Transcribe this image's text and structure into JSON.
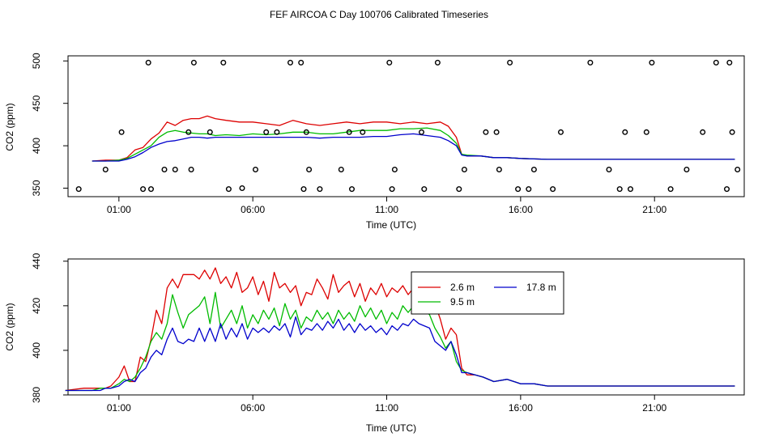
{
  "chart_title": "FEF AIRCOA C  Day 100706  Calibrated Timeseries",
  "chart_data": [
    {
      "type": "line",
      "name": "top-panel",
      "xlabel": "Time (UTC)",
      "ylabel": "CO2 (ppm)",
      "xlim": [
        -0.9,
        24.35
      ],
      "ylim": [
        340,
        506
      ],
      "x_ticks": [
        {
          "value": 1,
          "label": "01:00"
        },
        {
          "value": 6,
          "label": "06:00"
        },
        {
          "value": 11,
          "label": "11:00"
        },
        {
          "value": 16,
          "label": "16:00"
        },
        {
          "value": 21,
          "label": "21:00"
        }
      ],
      "y_ticks": [
        {
          "value": 350,
          "label": "350"
        },
        {
          "value": 400,
          "label": "400"
        },
        {
          "value": 450,
          "label": "450"
        },
        {
          "value": 500,
          "label": "500"
        }
      ],
      "series": [
        {
          "name": "2.6 m",
          "color": "#dd0000",
          "x": [
            0,
            0.5,
            1,
            1.3,
            1.6,
            1.9,
            2.2,
            2.5,
            2.8,
            3.1,
            3.4,
            3.7,
            4,
            4.3,
            4.6,
            5,
            5.5,
            6,
            6.5,
            7,
            7.5,
            8,
            8.5,
            9,
            9.5,
            10,
            10.5,
            11,
            11.5,
            12,
            12.5,
            13,
            13.3,
            13.6,
            13.8,
            14,
            14.5,
            15,
            15.5,
            16,
            17,
            18,
            19,
            20,
            21,
            22,
            23,
            24
          ],
          "y": [
            382,
            383,
            383,
            386,
            395,
            398,
            408,
            415,
            428,
            424,
            430,
            432,
            432,
            435,
            432,
            430,
            428,
            428,
            426,
            424,
            430,
            426,
            424,
            426,
            428,
            426,
            428,
            428,
            426,
            428,
            426,
            428,
            423,
            410,
            390,
            388,
            388,
            386,
            386,
            385,
            384,
            384,
            384,
            384,
            384,
            384,
            384,
            384
          ]
        },
        {
          "name": "9.5 m",
          "color": "#00bb00",
          "x": [
            0,
            0.5,
            1,
            1.3,
            1.6,
            1.9,
            2.2,
            2.5,
            2.8,
            3.1,
            3.4,
            3.7,
            4,
            4.3,
            4.6,
            5,
            5.5,
            6,
            6.5,
            7,
            7.5,
            8,
            8.5,
            9,
            9.5,
            10,
            10.5,
            11,
            11.5,
            12,
            12.5,
            13,
            13.3,
            13.6,
            13.8,
            14,
            14.5,
            15,
            15.5,
            16,
            17,
            18,
            19,
            20,
            21,
            22,
            23,
            24
          ],
          "y": [
            382,
            382,
            383,
            385,
            390,
            395,
            400,
            410,
            416,
            418,
            416,
            415,
            414,
            414,
            412,
            413,
            412,
            414,
            413,
            414,
            416,
            416,
            414,
            414,
            416,
            418,
            418,
            418,
            420,
            420,
            421,
            418,
            412,
            403,
            390,
            389,
            388,
            386,
            386,
            385,
            384,
            384,
            384,
            384,
            384,
            384,
            384,
            384
          ]
        },
        {
          "name": "17.8 m",
          "color": "#0000cc",
          "x": [
            0,
            0.5,
            1,
            1.3,
            1.6,
            1.9,
            2.2,
            2.5,
            2.8,
            3.1,
            3.4,
            3.7,
            4,
            4.3,
            4.6,
            5,
            5.5,
            6,
            6.5,
            7,
            7.5,
            8,
            8.5,
            9,
            9.5,
            10,
            10.5,
            11,
            11.5,
            12,
            12.5,
            13,
            13.3,
            13.6,
            13.8,
            14,
            14.5,
            15,
            15.5,
            16,
            17,
            18,
            19,
            20,
            21,
            22,
            23,
            24
          ],
          "y": [
            382,
            382,
            382,
            384,
            387,
            392,
            398,
            402,
            405,
            406,
            408,
            410,
            410,
            409,
            410,
            410,
            410,
            410,
            410,
            410,
            410,
            410,
            409,
            410,
            410,
            410,
            411,
            411,
            413,
            414,
            412,
            410,
            406,
            400,
            389,
            388,
            388,
            386,
            386,
            385,
            384,
            384,
            384,
            384,
            384,
            384,
            384,
            384
          ]
        }
      ],
      "scatter": {
        "name": "flags",
        "marker": "open-circle",
        "x": [
          -0.5,
          1.1,
          1.9,
          2.1,
          3.1,
          3.6,
          4.4,
          5.6,
          6.1,
          6.9,
          7.4,
          8,
          8.5,
          9.3,
          10.1,
          11.3,
          12.4,
          12.9,
          13.7,
          14.7,
          15.6,
          15.9,
          16.3,
          17.5,
          18.6,
          19.7,
          20.9,
          22.2,
          23.3,
          23.7,
          0.5,
          2.2,
          2.7,
          3.7,
          4.9,
          5.1,
          7.8,
          8.1,
          9.7,
          11.1,
          12.3,
          13.9,
          15.1,
          16.5,
          17.2,
          19.3,
          20.7,
          21.6,
          22.8,
          23.8,
          3.8,
          6.5,
          7.9,
          9.6,
          11.2,
          15.2,
          20.1,
          24.1,
          19.9,
          23.9
        ],
        "y": [
          349,
          416,
          349,
          498,
          372,
          416,
          416,
          350,
          372,
          416,
          498,
          416,
          349,
          372,
          416,
          372,
          349,
          498,
          349,
          416,
          498,
          349,
          349,
          416,
          498,
          349,
          498,
          372,
          498,
          349,
          372,
          349,
          372,
          372,
          498,
          349,
          498,
          372,
          349,
          498,
          416,
          372,
          416,
          372,
          349,
          372,
          416,
          349,
          416,
          498,
          498,
          416,
          349,
          416,
          349,
          372,
          349,
          372,
          416,
          416
        ]
      }
    },
    {
      "type": "line",
      "name": "bottom-panel",
      "xlabel": "Time (UTC)",
      "ylabel": "CO2 (ppm)",
      "xlim": [
        -0.9,
        24.35
      ],
      "ylim": [
        380,
        441
      ],
      "x_ticks": [
        {
          "value": 1,
          "label": "01:00"
        },
        {
          "value": 6,
          "label": "06:00"
        },
        {
          "value": 11,
          "label": "11:00"
        },
        {
          "value": 16,
          "label": "16:00"
        },
        {
          "value": 21,
          "label": "21:00"
        }
      ],
      "y_ticks": [
        {
          "value": 380,
          "label": "380"
        },
        {
          "value": 400,
          "label": "400"
        },
        {
          "value": 420,
          "label": "420"
        },
        {
          "value": 440,
          "label": "440"
        }
      ],
      "legend": {
        "position": "top-right",
        "entries": [
          {
            "label": "2.6 m",
            "color": "#dd0000"
          },
          {
            "label": "9.5 m",
            "color": "#00bb00"
          },
          {
            "label": "17.8 m",
            "color": "#0000cc"
          }
        ]
      },
      "series": [
        {
          "name": "2.6 m",
          "color": "#dd0000",
          "x": [
            -1,
            -0.3,
            0,
            0.3,
            0.5,
            0.7,
            1,
            1.2,
            1.4,
            1.6,
            1.8,
            2,
            2.2,
            2.4,
            2.6,
            2.8,
            3,
            3.2,
            3.4,
            3.6,
            3.8,
            4,
            4.2,
            4.4,
            4.6,
            4.8,
            5,
            5.2,
            5.4,
            5.6,
            5.8,
            6,
            6.2,
            6.4,
            6.6,
            6.8,
            7,
            7.2,
            7.4,
            7.6,
            7.8,
            8,
            8.2,
            8.4,
            8.6,
            8.8,
            9,
            9.2,
            9.4,
            9.6,
            9.8,
            10,
            10.2,
            10.4,
            10.6,
            10.8,
            11,
            11.2,
            11.4,
            11.6,
            11.8,
            12,
            12.2,
            12.4,
            12.6,
            12.8,
            13,
            13.2,
            13.4,
            13.6,
            13.8,
            14,
            14.3,
            14.6,
            15,
            15.5,
            16,
            16.5,
            17,
            18,
            19,
            20,
            21,
            22,
            23,
            24
          ],
          "y": [
            382,
            383,
            383,
            383,
            383,
            384,
            388,
            393,
            386,
            386,
            397,
            395,
            405,
            418,
            412,
            428,
            432,
            428,
            434,
            434,
            434,
            432,
            436,
            432,
            437,
            430,
            433,
            428,
            435,
            426,
            428,
            433,
            425,
            431,
            422,
            435,
            428,
            430,
            426,
            429,
            420,
            426,
            425,
            432,
            428,
            423,
            434,
            426,
            429,
            431,
            424,
            430,
            422,
            428,
            425,
            430,
            424,
            428,
            426,
            429,
            425,
            428,
            426,
            427,
            426,
            421,
            414,
            405,
            410,
            407,
            392,
            389,
            389,
            388,
            386,
            387,
            385,
            385,
            384,
            384,
            384,
            384,
            384,
            384,
            384,
            384
          ]
        },
        {
          "name": "9.5 m",
          "color": "#00bb00",
          "x": [
            -1,
            -0.3,
            0,
            0.3,
            0.5,
            0.7,
            1,
            1.2,
            1.4,
            1.6,
            1.8,
            2,
            2.2,
            2.4,
            2.6,
            2.8,
            3,
            3.2,
            3.4,
            3.6,
            3.8,
            4,
            4.2,
            4.4,
            4.6,
            4.8,
            5,
            5.2,
            5.4,
            5.6,
            5.8,
            6,
            6.2,
            6.4,
            6.6,
            6.8,
            7,
            7.2,
            7.4,
            7.6,
            7.8,
            8,
            8.2,
            8.4,
            8.6,
            8.8,
            9,
            9.2,
            9.4,
            9.6,
            9.8,
            10,
            10.2,
            10.4,
            10.6,
            10.8,
            11,
            11.2,
            11.4,
            11.6,
            11.8,
            12,
            12.2,
            12.4,
            12.6,
            12.8,
            13,
            13.2,
            13.4,
            13.6,
            13.8,
            14,
            14.3,
            14.6,
            15,
            15.5,
            16,
            16.5,
            17,
            18,
            19,
            20,
            21,
            22,
            23,
            24
          ],
          "y": [
            382,
            382,
            382,
            383,
            383,
            383,
            385,
            387,
            386,
            388,
            392,
            397,
            404,
            408,
            405,
            412,
            425,
            417,
            410,
            416,
            418,
            420,
            424,
            412,
            426,
            410,
            414,
            418,
            412,
            420,
            410,
            416,
            412,
            418,
            414,
            419,
            411,
            421,
            414,
            418,
            410,
            415,
            413,
            418,
            414,
            417,
            412,
            418,
            414,
            417,
            413,
            420,
            415,
            419,
            414,
            418,
            412,
            417,
            414,
            420,
            417,
            420,
            420,
            418,
            416,
            410,
            406,
            401,
            404,
            395,
            391,
            390,
            389,
            388,
            386,
            387,
            385,
            385,
            384,
            384,
            384,
            384,
            384,
            384,
            384,
            384
          ]
        },
        {
          "name": "17.8 m",
          "color": "#0000cc",
          "x": [
            -1,
            -0.3,
            0,
            0.3,
            0.5,
            0.7,
            1,
            1.2,
            1.4,
            1.6,
            1.8,
            2,
            2.2,
            2.4,
            2.6,
            2.8,
            3,
            3.2,
            3.4,
            3.6,
            3.8,
            4,
            4.2,
            4.4,
            4.6,
            4.8,
            5,
            5.2,
            5.4,
            5.6,
            5.8,
            6,
            6.2,
            6.4,
            6.6,
            6.8,
            7,
            7.2,
            7.4,
            7.6,
            7.8,
            8,
            8.2,
            8.4,
            8.6,
            8.8,
            9,
            9.2,
            9.4,
            9.6,
            9.8,
            10,
            10.2,
            10.4,
            10.6,
            10.8,
            11,
            11.2,
            11.4,
            11.6,
            11.8,
            12,
            12.2,
            12.4,
            12.6,
            12.8,
            13,
            13.2,
            13.4,
            13.6,
            13.8,
            14,
            14.3,
            14.6,
            15,
            15.5,
            16,
            16.5,
            17,
            18,
            19,
            20,
            21,
            22,
            23,
            24
          ],
          "y": [
            382,
            382,
            382,
            382,
            383,
            383,
            384,
            386,
            387,
            386,
            390,
            392,
            397,
            400,
            398,
            405,
            410,
            404,
            403,
            405,
            404,
            410,
            404,
            410,
            404,
            412,
            405,
            410,
            406,
            412,
            405,
            410,
            408,
            410,
            408,
            411,
            409,
            412,
            406,
            415,
            407,
            410,
            409,
            412,
            409,
            413,
            410,
            414,
            409,
            412,
            408,
            412,
            409,
            411,
            408,
            410,
            407,
            411,
            409,
            412,
            411,
            414,
            412,
            411,
            410,
            404,
            402,
            400,
            404,
            398,
            390,
            390,
            389,
            388,
            386,
            387,
            385,
            385,
            384,
            384,
            384,
            384,
            384,
            384,
            384,
            384
          ]
        }
      ]
    }
  ]
}
